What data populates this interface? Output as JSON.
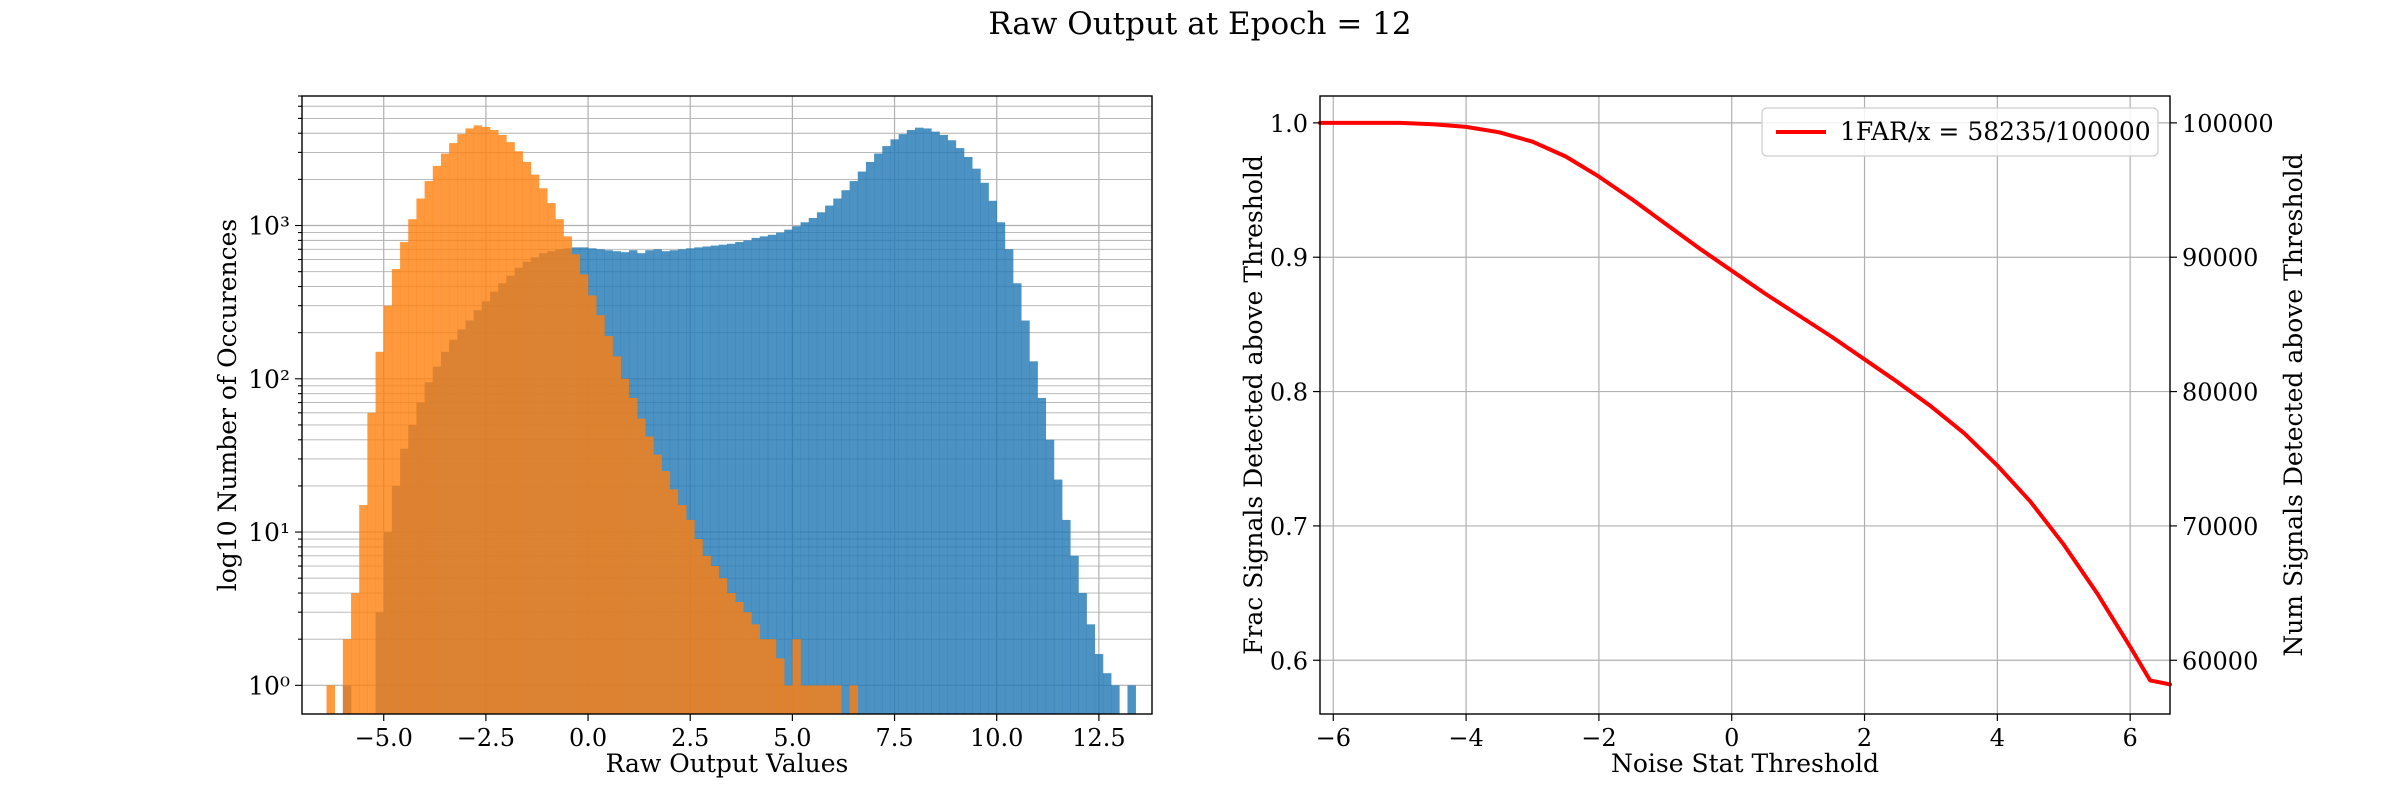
{
  "figure": {
    "suptitle": "Raw Output at Epoch = 12"
  },
  "colors": {
    "series_blue": "#1f77b4",
    "series_orange": "#ff7f0e",
    "curve_red": "#ff0000",
    "grid": "#b0b0b0"
  },
  "chart_data": [
    {
      "type": "histogram",
      "title": "",
      "xlabel": "Raw Output Values",
      "ylabel": "log10 Number of Occurences",
      "y_scale": "log",
      "xlim": [
        -7.0,
        13.8
      ],
      "ylim": [
        0.65,
        7000
      ],
      "grid": true,
      "xticks": [
        -5.0,
        -2.5,
        0.0,
        2.5,
        5.0,
        7.5,
        10.0,
        12.5
      ],
      "xtick_labels": [
        "−5.0",
        "−2.5",
        "0.0",
        "2.5",
        "5.0",
        "7.5",
        "10.0",
        "12.5"
      ],
      "yticks": [
        1,
        10,
        100,
        1000
      ],
      "ytick_labels": [
        "10⁰",
        "10¹",
        "10²",
        "10³"
      ],
      "bin_width": 0.2,
      "series": [
        {
          "color": "#1f77b4",
          "bins": [
            [
              -6.0,
              1
            ],
            [
              -5.2,
              3
            ],
            [
              -5.0,
              10
            ],
            [
              -4.8,
              20
            ],
            [
              -4.6,
              35
            ],
            [
              -4.4,
              50
            ],
            [
              -4.2,
              70
            ],
            [
              -4.0,
              95
            ],
            [
              -3.8,
              120
            ],
            [
              -3.6,
              150
            ],
            [
              -3.4,
              180
            ],
            [
              -3.2,
              210
            ],
            [
              -3.0,
              240
            ],
            [
              -2.8,
              280
            ],
            [
              -2.6,
              320
            ],
            [
              -2.4,
              370
            ],
            [
              -2.2,
              420
            ],
            [
              -2.0,
              470
            ],
            [
              -1.8,
              530
            ],
            [
              -1.6,
              580
            ],
            [
              -1.4,
              620
            ],
            [
              -1.2,
              660
            ],
            [
              -1.0,
              680
            ],
            [
              -0.8,
              700
            ],
            [
              -0.6,
              710
            ],
            [
              -0.4,
              720
            ],
            [
              -0.2,
              720
            ],
            [
              0.0,
              710
            ],
            [
              0.2,
              700
            ],
            [
              0.4,
              690
            ],
            [
              0.6,
              680
            ],
            [
              0.8,
              670
            ],
            [
              1.0,
              690
            ],
            [
              1.2,
              660
            ],
            [
              1.4,
              690
            ],
            [
              1.6,
              700
            ],
            [
              1.8,
              680
            ],
            [
              2.0,
              690
            ],
            [
              2.2,
              700
            ],
            [
              2.4,
              710
            ],
            [
              2.6,
              720
            ],
            [
              2.8,
              730
            ],
            [
              3.0,
              740
            ],
            [
              3.2,
              750
            ],
            [
              3.4,
              760
            ],
            [
              3.6,
              780
            ],
            [
              3.8,
              800
            ],
            [
              4.0,
              830
            ],
            [
              4.2,
              850
            ],
            [
              4.4,
              870
            ],
            [
              4.6,
              900
            ],
            [
              4.8,
              940
            ],
            [
              5.0,
              990
            ],
            [
              5.2,
              1050
            ],
            [
              5.4,
              1120
            ],
            [
              5.6,
              1220
            ],
            [
              5.8,
              1350
            ],
            [
              6.0,
              1500
            ],
            [
              6.2,
              1700
            ],
            [
              6.4,
              1950
            ],
            [
              6.6,
              2250
            ],
            [
              6.8,
              2600
            ],
            [
              7.0,
              2950
            ],
            [
              7.2,
              3300
            ],
            [
              7.4,
              3650
            ],
            [
              7.6,
              3950
            ],
            [
              7.8,
              4200
            ],
            [
              8.0,
              4350
            ],
            [
              8.2,
              4300
            ],
            [
              8.4,
              4100
            ],
            [
              8.6,
              3900
            ],
            [
              8.8,
              3600
            ],
            [
              9.0,
              3200
            ],
            [
              9.2,
              2800
            ],
            [
              9.4,
              2350
            ],
            [
              9.6,
              1900
            ],
            [
              9.8,
              1450
            ],
            [
              10.0,
              1050
            ],
            [
              10.2,
              700
            ],
            [
              10.4,
              420
            ],
            [
              10.6,
              240
            ],
            [
              10.8,
              130
            ],
            [
              11.0,
              75
            ],
            [
              11.2,
              40
            ],
            [
              11.4,
              22
            ],
            [
              11.6,
              12
            ],
            [
              11.8,
              7
            ],
            [
              12.0,
              4
            ],
            [
              12.2,
              2.5
            ],
            [
              12.4,
              1.6
            ],
            [
              12.6,
              1.2
            ],
            [
              12.8,
              1
            ],
            [
              13.2,
              1
            ]
          ]
        },
        {
          "color": "#ff7f0e",
          "bins": [
            [
              -6.4,
              1
            ],
            [
              -6.0,
              2
            ],
            [
              -5.8,
              4
            ],
            [
              -5.6,
              15
            ],
            [
              -5.4,
              60
            ],
            [
              -5.2,
              150
            ],
            [
              -5.0,
              300
            ],
            [
              -4.8,
              520
            ],
            [
              -4.6,
              780
            ],
            [
              -4.4,
              1100
            ],
            [
              -4.2,
              1500
            ],
            [
              -4.0,
              1950
            ],
            [
              -3.8,
              2450
            ],
            [
              -3.6,
              2950
            ],
            [
              -3.4,
              3450
            ],
            [
              -3.2,
              3950
            ],
            [
              -3.0,
              4300
            ],
            [
              -2.8,
              4500
            ],
            [
              -2.6,
              4400
            ],
            [
              -2.4,
              4200
            ],
            [
              -2.2,
              3900
            ],
            [
              -2.0,
              3500
            ],
            [
              -1.8,
              3050
            ],
            [
              -1.6,
              2600
            ],
            [
              -1.4,
              2150
            ],
            [
              -1.2,
              1750
            ],
            [
              -1.0,
              1400
            ],
            [
              -0.8,
              1100
            ],
            [
              -0.6,
              850
            ],
            [
              -0.4,
              650
            ],
            [
              -0.2,
              480
            ],
            [
              0.0,
              350
            ],
            [
              0.2,
              260
            ],
            [
              0.4,
              190
            ],
            [
              0.6,
              140
            ],
            [
              0.8,
              100
            ],
            [
              1.0,
              75
            ],
            [
              1.2,
              55
            ],
            [
              1.4,
              42
            ],
            [
              1.6,
              32
            ],
            [
              1.8,
              25
            ],
            [
              2.0,
              19
            ],
            [
              2.2,
              15
            ],
            [
              2.4,
              12
            ],
            [
              2.6,
              9
            ],
            [
              2.8,
              7
            ],
            [
              3.0,
              6
            ],
            [
              3.2,
              5
            ],
            [
              3.4,
              4
            ],
            [
              3.6,
              3.5
            ],
            [
              3.8,
              3
            ],
            [
              4.0,
              2.5
            ],
            [
              4.2,
              2
            ],
            [
              4.4,
              2
            ],
            [
              4.6,
              1.5
            ],
            [
              4.8,
              1
            ],
            [
              5.0,
              2
            ],
            [
              5.2,
              1
            ],
            [
              5.4,
              1
            ],
            [
              5.6,
              1
            ],
            [
              5.8,
              1
            ],
            [
              6.0,
              1
            ],
            [
              6.4,
              1
            ]
          ]
        }
      ]
    },
    {
      "type": "line",
      "title": "",
      "xlabel": "Noise Stat Threshold",
      "ylabel": "Frac Signals Detected above Threshold",
      "ylabel_right": "Num Signals Detected above Threshold",
      "xlim": [
        -6.2,
        6.6
      ],
      "ylim": [
        0.56,
        1.02
      ],
      "ylim_right": [
        56000,
        102000
      ],
      "grid": true,
      "xticks": [
        -6,
        -4,
        -2,
        0,
        2,
        4,
        6
      ],
      "xtick_labels": [
        "−6",
        "−4",
        "−2",
        "0",
        "2",
        "4",
        "6"
      ],
      "yticks": [
        0.6,
        0.7,
        0.8,
        0.9,
        1.0
      ],
      "ytick_labels": [
        "0.6",
        "0.7",
        "0.8",
        "0.9",
        "1.0"
      ],
      "yticks_right": [
        60000,
        70000,
        80000,
        90000,
        100000
      ],
      "ytick_labels_right": [
        "60000",
        "70000",
        "80000",
        "90000",
        "100000"
      ],
      "legend_position": "top-right",
      "series": [
        {
          "name": "1FAR/x = 58235/100000",
          "color": "#ff0000",
          "x": [
            -6.2,
            -5.5,
            -5.0,
            -4.5,
            -4.0,
            -3.5,
            -3.0,
            -2.5,
            -2.0,
            -1.5,
            -1.0,
            -0.5,
            0.0,
            0.5,
            1.0,
            1.5,
            2.0,
            2.5,
            3.0,
            3.5,
            4.0,
            4.5,
            5.0,
            5.5,
            6.0,
            6.3,
            6.6
          ],
          "y": [
            1.0,
            1.0,
            1.0,
            0.999,
            0.997,
            0.993,
            0.986,
            0.975,
            0.96,
            0.943,
            0.925,
            0.907,
            0.89,
            0.873,
            0.857,
            0.841,
            0.824,
            0.807,
            0.789,
            0.769,
            0.745,
            0.718,
            0.686,
            0.65,
            0.61,
            0.585,
            0.582
          ]
        }
      ]
    }
  ]
}
